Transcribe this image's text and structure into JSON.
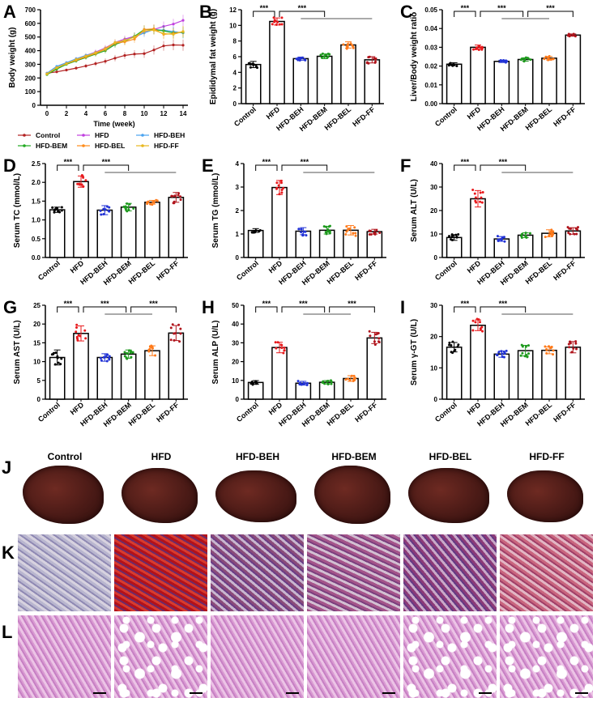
{
  "groups": [
    "Control",
    "HFD",
    "HFD-BEH",
    "HFD-BEM",
    "HFD-BEL",
    "HFD-FF"
  ],
  "group_colors": {
    "Control": "#000000",
    "HFD": "#e8191c",
    "HFD-BEH": "#2233d6",
    "HFD-BEM": "#1e9a1e",
    "HFD-BEL": "#ff7a1a",
    "HFD-FF": "#b0141c"
  },
  "panel_labels": [
    "A",
    "B",
    "C",
    "D",
    "E",
    "F",
    "G",
    "H",
    "I",
    "J",
    "K",
    "L"
  ],
  "significance": "***",
  "chart_data": [
    {
      "id": "A",
      "type": "line",
      "xlabel": "Time (week)",
      "ylabel": "Body weight (g)",
      "xlim": [
        0,
        14
      ],
      "ylim": [
        0,
        700
      ],
      "xticks": [
        0,
        2,
        4,
        6,
        8,
        10,
        12,
        14
      ],
      "yticks": [
        0,
        100,
        200,
        300,
        400,
        500,
        600,
        700
      ],
      "x": [
        0,
        1,
        2,
        3,
        4,
        5,
        6,
        7,
        8,
        9,
        10,
        11,
        12,
        13,
        14
      ],
      "legend": "bottom",
      "series": [
        {
          "name": "Control",
          "color": "#b22222",
          "marker": "+",
          "values": [
            235,
            245,
            258,
            272,
            288,
            305,
            322,
            345,
            365,
            375,
            378,
            405,
            435,
            442,
            440
          ]
        },
        {
          "name": "HFD",
          "color": "#c040e0",
          "marker": "dot",
          "values": [
            230,
            275,
            310,
            340,
            365,
            390,
            420,
            460,
            485,
            505,
            540,
            555,
            578,
            595,
            622
          ]
        },
        {
          "name": "HFD-BEH",
          "color": "#4aa3f0",
          "marker": "dot",
          "values": [
            235,
            285,
            312,
            340,
            365,
            385,
            410,
            450,
            475,
            500,
            530,
            555,
            550,
            540,
            530
          ]
        },
        {
          "name": "HFD-BEM",
          "color": "#22aa22",
          "marker": "square",
          "values": [
            225,
            265,
            300,
            325,
            350,
            375,
            400,
            445,
            470,
            505,
            555,
            555,
            545,
            530,
            535
          ]
        },
        {
          "name": "HFD-BEL",
          "color": "#ff8c1a",
          "marker": "triangle",
          "values": [
            230,
            275,
            305,
            330,
            355,
            380,
            410,
            455,
            465,
            485,
            555,
            560,
            520,
            525,
            540
          ]
        },
        {
          "name": "HFD-FF",
          "color": "#e8b820",
          "marker": "+",
          "values": [
            230,
            275,
            305,
            335,
            360,
            385,
            415,
            460,
            475,
            500,
            545,
            550,
            525,
            520,
            540
          ]
        }
      ]
    },
    {
      "id": "B",
      "type": "bar",
      "ylabel": "Epididymal fat weight (g)",
      "ylim": [
        0,
        12
      ],
      "yticks": [
        0,
        2,
        4,
        6,
        8,
        10,
        12
      ],
      "tickfmt": 0,
      "values": [
        5.0,
        10.5,
        5.75,
        6.05,
        7.5,
        5.6
      ],
      "sd": [
        0.4,
        0.45,
        0.2,
        0.3,
        0.4,
        0.4
      ],
      "brackets": [
        [
          0,
          1
        ],
        [
          1,
          3
        ]
      ],
      "spans": [
        [
          2,
          5
        ]
      ]
    },
    {
      "id": "C",
      "type": "bar",
      "ylabel": "Liver/Body weight ratio",
      "ylim": [
        0,
        0.05
      ],
      "yticks": [
        0,
        0.01,
        0.02,
        0.03,
        0.04,
        0.05
      ],
      "tickfmt": 2,
      "values": [
        0.021,
        0.03,
        0.0225,
        0.0235,
        0.0242,
        0.0365
      ],
      "sd": [
        0.0008,
        0.0012,
        0.0006,
        0.0009,
        0.0009,
        0.0006
      ],
      "brackets": [
        [
          0,
          1
        ],
        [
          1,
          3
        ],
        [
          3,
          5
        ]
      ],
      "spans": [
        [
          2,
          4
        ]
      ]
    },
    {
      "id": "D",
      "type": "bar",
      "ylabel": "Serum TC (mmol/L)",
      "ylim": [
        0,
        2.5
      ],
      "yticks": [
        0,
        0.5,
        1.0,
        1.5,
        2.0,
        2.5
      ],
      "tickfmt": 1,
      "values": [
        1.27,
        2.02,
        1.26,
        1.34,
        1.47,
        1.6
      ],
      "sd": [
        0.07,
        0.15,
        0.12,
        0.1,
        0.05,
        0.13
      ],
      "brackets": [
        [
          0,
          1
        ],
        [
          1,
          3
        ]
      ],
      "spans": [
        [
          2,
          5
        ]
      ]
    },
    {
      "id": "E",
      "type": "bar",
      "ylabel": "Serum TG (mmol/L)",
      "ylim": [
        0,
        4
      ],
      "yticks": [
        0,
        1,
        2,
        3,
        4
      ],
      "tickfmt": 0,
      "values": [
        1.15,
        2.98,
        1.12,
        1.16,
        1.16,
        1.1
      ],
      "sd": [
        0.08,
        0.3,
        0.15,
        0.16,
        0.2,
        0.1
      ],
      "brackets": [
        [
          0,
          1
        ],
        [
          1,
          3
        ]
      ],
      "spans": [
        [
          2,
          5
        ]
      ]
    },
    {
      "id": "F",
      "type": "bar",
      "ylabel": "Serum ALT (U/L)",
      "ylim": [
        0,
        40
      ],
      "yticks": [
        0,
        10,
        20,
        30,
        40
      ],
      "tickfmt": 0,
      "values": [
        8.5,
        25.0,
        7.9,
        9.5,
        10.3,
        11.3
      ],
      "sd": [
        1.2,
        3.5,
        1.0,
        1.0,
        1.5,
        1.4
      ],
      "brackets": [
        [
          0,
          1
        ],
        [
          1,
          3
        ]
      ],
      "spans": [
        [
          2,
          5
        ]
      ]
    },
    {
      "id": "G",
      "type": "bar",
      "ylabel": "Serum AST (U/L)",
      "ylim": [
        0,
        25
      ],
      "yticks": [
        0,
        5,
        10,
        15,
        20,
        25
      ],
      "tickfmt": 0,
      "values": [
        11.1,
        17.5,
        11.1,
        12.0,
        12.9,
        17.6
      ],
      "sd": [
        2.0,
        2.0,
        1.0,
        1.1,
        1.3,
        2.0
      ],
      "brackets": [
        [
          0,
          1
        ],
        [
          1,
          3
        ],
        [
          3,
          5
        ]
      ],
      "spans": [
        [
          2,
          4
        ]
      ]
    },
    {
      "id": "H",
      "type": "bar",
      "ylabel": "Serum ALP (U/L)",
      "ylim": [
        0,
        50
      ],
      "yticks": [
        0,
        10,
        20,
        30,
        40,
        50
      ],
      "tickfmt": 0,
      "values": [
        8.9,
        27.5,
        8.5,
        9.0,
        11.0,
        32.6
      ],
      "sd": [
        1.0,
        2.8,
        1.0,
        0.9,
        1.5,
        3.0
      ],
      "brackets": [
        [
          0,
          1
        ],
        [
          1,
          3
        ],
        [
          3,
          5
        ]
      ],
      "spans": [
        [
          2,
          4
        ]
      ]
    },
    {
      "id": "I",
      "type": "bar",
      "ylabel": "Serum γ-GT (U/L)",
      "ylim": [
        0,
        30
      ],
      "yticks": [
        0,
        10,
        20,
        30
      ],
      "tickfmt": 0,
      "values": [
        16.6,
        23.6,
        14.4,
        15.5,
        15.6,
        16.6
      ],
      "sd": [
        1.5,
        1.7,
        1.0,
        1.7,
        1.1,
        1.8
      ],
      "brackets": [
        [
          0,
          1
        ],
        [
          1,
          3
        ]
      ],
      "spans": [
        [
          2,
          5
        ]
      ]
    }
  ]
}
